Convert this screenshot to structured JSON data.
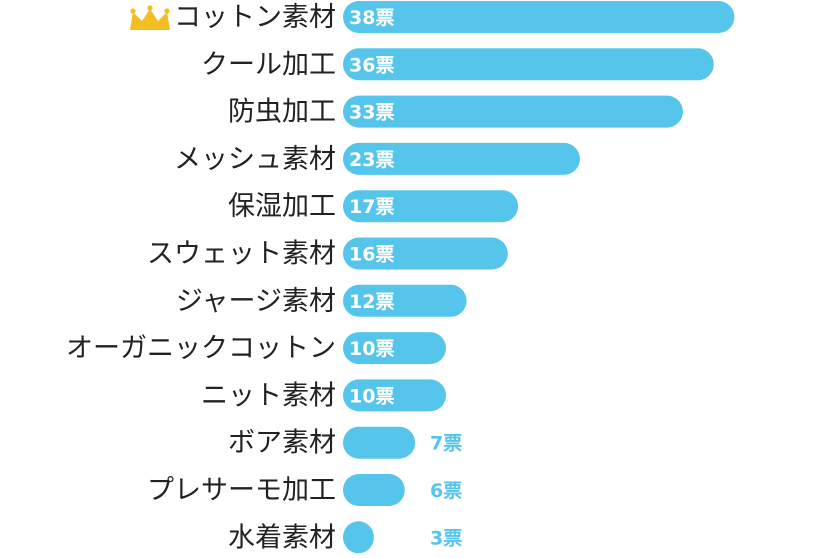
{
  "chart_data": {
    "type": "bar",
    "orientation": "horizontal",
    "categories": [
      "コットン素材",
      "クール加工",
      "防虫加工",
      "メッシュ素材",
      "保湿加工",
      "スウェット素材",
      "ジャージ素材",
      "オーガニックコットン",
      "ニット素材",
      "ボア素材",
      "プレサーモ加工",
      "水着素材"
    ],
    "values": [
      38,
      36,
      33,
      23,
      17,
      16,
      12,
      10,
      10,
      7,
      6,
      3
    ],
    "value_labels": [
      "38票",
      "36票",
      "33票",
      "23票",
      "17票",
      "16票",
      "12票",
      "10票",
      "10票",
      "7票",
      "6票",
      "3票"
    ],
    "unit": "票",
    "title": "",
    "xlabel": "",
    "ylabel": "",
    "top_marker": "crown-icon",
    "colors": {
      "bar": "#55C5EC",
      "label_inside": "#ffffff",
      "label_outside": "#55C5EC",
      "crown": "#F2BE22"
    }
  }
}
